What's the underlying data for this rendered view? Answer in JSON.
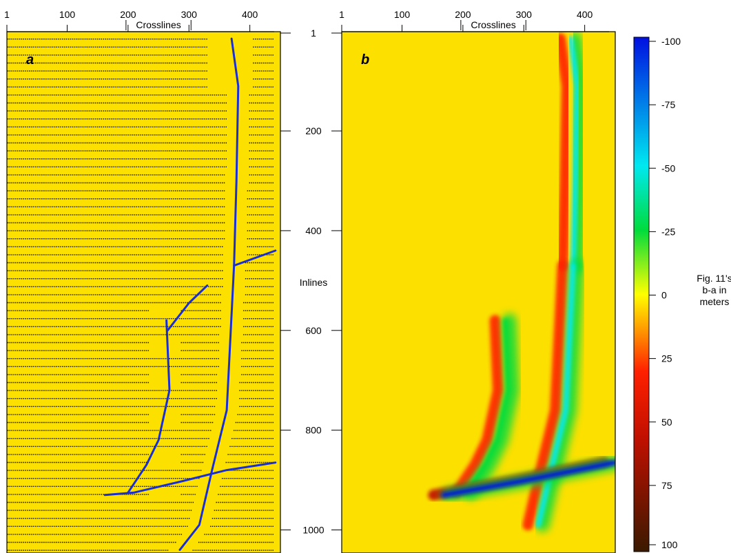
{
  "figure": {
    "panels": [
      {
        "letter": "a",
        "type": "fault-interpretation-map"
      },
      {
        "letter": "b",
        "type": "heatmap"
      }
    ],
    "top_axis": {
      "label": "Crosslines",
      "ticks": [
        "1",
        "100",
        "200",
        "300",
        "400"
      ]
    },
    "side_axis": {
      "label": "Inlines",
      "ticks": [
        "1",
        "200",
        "400",
        "600",
        "800",
        "1000"
      ]
    },
    "colorbar": {
      "title_lines": [
        "Fig. 11's",
        "b-a in",
        "meters"
      ],
      "ticks": [
        "-100",
        "-75",
        "-50",
        "-25",
        "0",
        "25",
        "50",
        "75",
        "100"
      ],
      "colors": [
        "#0010e0",
        "#00e8f0",
        "#00dc3c",
        "#ffff00",
        "#ff2000",
        "#c01000",
        "#3a1a00"
      ]
    },
    "colors": {
      "background": "#fce000",
      "fault_lines": "#1a2fd1",
      "sample_dots": "#000000",
      "frame": "#000000"
    }
  },
  "chart_data": [
    {
      "panel": "a",
      "type": "scatter",
      "xlabel": "Crosslines",
      "ylabel": "Inlines",
      "xlim": [
        1,
        440
      ],
      "ylim": [
        1,
        1040
      ],
      "x_ticks": [
        1,
        100,
        200,
        300,
        400
      ],
      "y_ticks": [
        1,
        200,
        400,
        600,
        800,
        1000
      ],
      "fault_traces": [
        {
          "points": [
            [
              370,
              15
            ],
            [
              381,
              110
            ],
            [
              378,
              300
            ],
            [
              374,
              470
            ],
            [
              362,
              760
            ],
            [
              338,
              880
            ],
            [
              317,
              990
            ],
            [
              285,
              1040
            ]
          ]
        },
        {
          "points": [
            [
              374,
              470
            ],
            [
              442,
              440
            ]
          ]
        },
        {
          "points": [
            [
              162,
              930
            ],
            [
              210,
              925
            ],
            [
              290,
              902
            ],
            [
              362,
              880
            ],
            [
              442,
              865
            ]
          ]
        },
        {
          "points": [
            [
              265,
              600
            ],
            [
              300,
              545
            ],
            [
              330,
              510
            ]
          ]
        },
        {
          "points": [
            [
              263,
              580
            ],
            [
              268,
              720
            ],
            [
              250,
              820
            ],
            [
              230,
              870
            ],
            [
              200,
              925
            ]
          ]
        }
      ]
    },
    {
      "panel": "b",
      "type": "heatmap",
      "title": "Fig. 11's b-a in meters",
      "xlabel": "Crosslines",
      "ylabel": "Inlines",
      "xlim": [
        1,
        440
      ],
      "ylim": [
        1,
        1040
      ],
      "colorbar_range": [
        -100,
        100
      ],
      "background_value": 0,
      "anomaly_bands": [
        {
          "along": [
            [
              370,
              15
            ],
            [
              381,
              110
            ],
            [
              378,
              300
            ],
            [
              374,
              470
            ]
          ],
          "left_value": 25,
          "right_value": -50
        },
        {
          "along": [
            [
              374,
              470
            ],
            [
              362,
              760
            ],
            [
              338,
              880
            ],
            [
              317,
              990
            ]
          ],
          "left_value": 30,
          "right_value": -75
        },
        {
          "along": [
            [
              263,
              580
            ],
            [
              268,
              720
            ],
            [
              250,
              820
            ],
            [
              230,
              870
            ],
            [
              200,
              925
            ]
          ],
          "left_value": 25,
          "right_value": -25
        },
        {
          "along": [
            [
              162,
              930
            ],
            [
              290,
              902
            ],
            [
              442,
              865
            ]
          ],
          "left_value": 35,
          "right_value": -90
        }
      ]
    }
  ]
}
